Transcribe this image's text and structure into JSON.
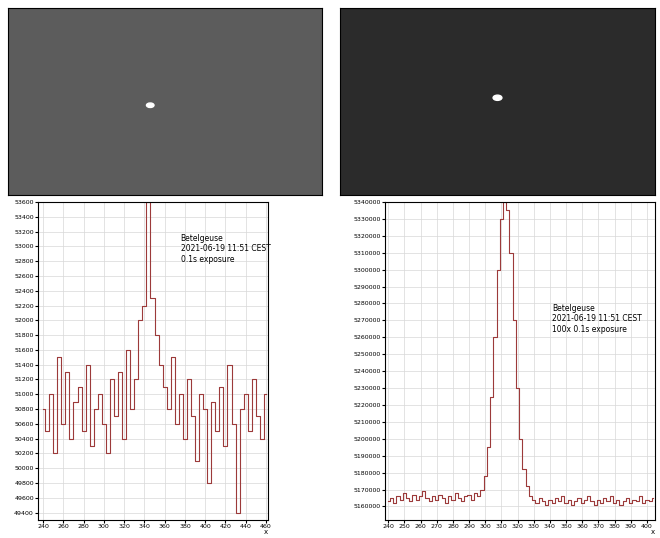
{
  "chart_data": [
    {
      "type": "line",
      "annotation": "Betelgeuse\n2021-06-19 11:51 CEST\n0.1s exposure",
      "xlabel": "x",
      "x": [
        240,
        244,
        248,
        252,
        256,
        260,
        264,
        268,
        272,
        276,
        280,
        284,
        288,
        292,
        296,
        300,
        304,
        308,
        312,
        316,
        320,
        324,
        328,
        332,
        336,
        340,
        344,
        348,
        352,
        356,
        360,
        364,
        368,
        372,
        376,
        380,
        384,
        388,
        392,
        396,
        400,
        404,
        408,
        412,
        416,
        420,
        424,
        428,
        432,
        436,
        440,
        444,
        448,
        452,
        456,
        460
      ],
      "values": [
        50800,
        50500,
        51000,
        50200,
        51500,
        50600,
        51300,
        50400,
        50900,
        51100,
        50500,
        51400,
        50300,
        50800,
        51000,
        50600,
        50200,
        51200,
        50700,
        51300,
        50400,
        51600,
        50800,
        51200,
        52000,
        52200,
        53600,
        52300,
        51800,
        51400,
        51100,
        50800,
        51500,
        50600,
        51000,
        50400,
        51200,
        50700,
        50100,
        51000,
        50800,
        49800,
        50900,
        50500,
        51100,
        50300,
        51400,
        50600,
        49400,
        50800,
        51000,
        50500,
        51200,
        50700,
        50400,
        51000
      ],
      "color": "#9c3a3a",
      "line_style": "steps",
      "grid": true,
      "xlim": [
        235,
        462
      ],
      "ylim": [
        49300,
        53600
      ],
      "xticks": [
        240,
        260,
        280,
        300,
        320,
        340,
        360,
        380,
        400,
        420,
        440,
        460
      ],
      "yticks": [
        49400,
        49600,
        49800,
        50000,
        50200,
        50400,
        50600,
        50800,
        51000,
        51200,
        51400,
        51600,
        51800,
        52000,
        52200,
        52400,
        52600,
        52800,
        53000,
        53200,
        53400,
        53600
      ]
    },
    {
      "type": "line",
      "annotation": "Betelgeuse\n2021-06-19 11:51 CEST\n100x 0.1s exposure",
      "xlabel": "x",
      "x": [
        240,
        242,
        244,
        246,
        248,
        250,
        252,
        254,
        256,
        258,
        260,
        262,
        264,
        266,
        268,
        270,
        272,
        274,
        276,
        278,
        280,
        282,
        284,
        286,
        288,
        290,
        292,
        294,
        296,
        298,
        300,
        302,
        304,
        306,
        308,
        310,
        312,
        314,
        316,
        318,
        320,
        322,
        324,
        326,
        328,
        330,
        332,
        334,
        336,
        338,
        340,
        342,
        344,
        346,
        348,
        350,
        352,
        354,
        356,
        358,
        360,
        362,
        364,
        366,
        368,
        370,
        372,
        374,
        376,
        378,
        380,
        382,
        384,
        386,
        388,
        390,
        392,
        394,
        396,
        398,
        400,
        402,
        404
      ],
      "values": [
        5163000,
        5165000,
        5162000,
        5166000,
        5164000,
        5168000,
        5165000,
        5163000,
        5167000,
        5164000,
        5166000,
        5169000,
        5165000,
        5163000,
        5166000,
        5164000,
        5167000,
        5165000,
        5162000,
        5166000,
        5164000,
        5168000,
        5165000,
        5163000,
        5166000,
        5167000,
        5164000,
        5168000,
        5166000,
        5170000,
        5178000,
        5195000,
        5225000,
        5260000,
        5300000,
        5330000,
        5340000,
        5335000,
        5310000,
        5270000,
        5230000,
        5200000,
        5182000,
        5172000,
        5166000,
        5164000,
        5162000,
        5165000,
        5163000,
        5161000,
        5164000,
        5162000,
        5165000,
        5163000,
        5166000,
        5162000,
        5164000,
        5161000,
        5163000,
        5165000,
        5162000,
        5164000,
        5166000,
        5163000,
        5161000,
        5164000,
        5162000,
        5165000,
        5163000,
        5166000,
        5162000,
        5164000,
        5161000,
        5163000,
        5165000,
        5162000,
        5164000,
        5163000,
        5166000,
        5162000,
        5164000,
        5163000,
        5165000
      ],
      "color": "#9c3a3a",
      "line_style": "steps",
      "grid": true,
      "xlim": [
        238,
        405
      ],
      "ylim": [
        5152000,
        5340000
      ],
      "xticks": [
        240,
        250,
        260,
        270,
        280,
        290,
        300,
        310,
        320,
        330,
        340,
        350,
        360,
        370,
        380,
        390,
        400
      ],
      "yticks": [
        5160000,
        5170000,
        5180000,
        5190000,
        5200000,
        5210000,
        5220000,
        5230000,
        5240000,
        5250000,
        5260000,
        5270000,
        5280000,
        5290000,
        5300000,
        5310000,
        5320000,
        5330000,
        5340000
      ]
    }
  ]
}
